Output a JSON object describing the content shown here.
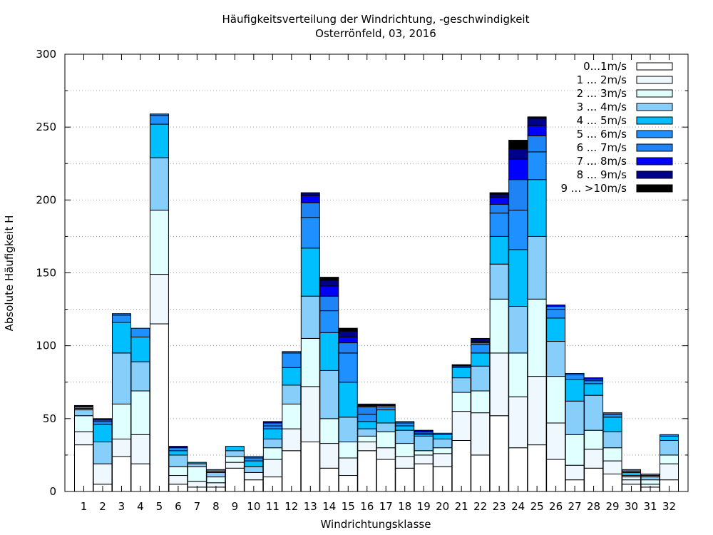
{
  "chart_data": {
    "type": "bar",
    "stacked": true,
    "title": "Häufigkeitsverteilung der Windrichtung, -geschwindigkeit",
    "subtitle": "Osterrönfeld, 03, 2016",
    "xlabel": "Windrichtungsklasse",
    "ylabel": "Absolute Häufigkeit H",
    "ylim": [
      0,
      300
    ],
    "yticks": [
      0,
      50,
      100,
      150,
      200,
      250,
      300
    ],
    "grid": true,
    "legend_position": "top-right",
    "categories": [
      "1",
      "2",
      "3",
      "4",
      "5",
      "6",
      "7",
      "8",
      "9",
      "10",
      "11",
      "12",
      "13",
      "14",
      "15",
      "16",
      "17",
      "18",
      "19",
      "20",
      "21",
      "22",
      "23",
      "24",
      "25",
      "26",
      "27",
      "28",
      "29",
      "30",
      "31",
      "32"
    ],
    "series": [
      {
        "name": "0...1m/s",
        "color": "#ffffff",
        "values": [
          32,
          5,
          24,
          19,
          115,
          5,
          3,
          3,
          16,
          8,
          10,
          28,
          34,
          16,
          11,
          28,
          22,
          16,
          19,
          17,
          35,
          25,
          52,
          30,
          32,
          22,
          8,
          16,
          12,
          5,
          3,
          8
        ]
      },
      {
        "name": "1 ... 2m/s",
        "color": "#f0f8ff",
        "values": [
          9,
          14,
          12,
          20,
          34,
          6,
          4,
          3,
          4,
          5,
          12,
          15,
          38,
          17,
          12,
          6,
          8,
          8,
          6,
          9,
          20,
          29,
          43,
          35,
          47,
          25,
          10,
          13,
          9,
          3,
          2,
          11
        ]
      },
      {
        "name": "2 ... 3m/s",
        "color": "#e0ffff",
        "values": [
          11,
          0,
          24,
          30,
          44,
          6,
          10,
          4,
          4,
          0,
          8,
          17,
          33,
          17,
          11,
          4,
          11,
          9,
          3,
          4,
          13,
          15,
          37,
          30,
          53,
          32,
          21,
          13,
          9,
          2,
          3,
          6
        ]
      },
      {
        "name": "3 ... 4m/s",
        "color": "#87cefa",
        "values": [
          4,
          15,
          35,
          20,
          36,
          8,
          2,
          3,
          4,
          4,
          6,
          13,
          29,
          33,
          17,
          5,
          6,
          9,
          10,
          6,
          10,
          17,
          24,
          32,
          43,
          24,
          23,
          24,
          11,
          1,
          2,
          10
        ]
      },
      {
        "name": "4 ... 5m/s",
        "color": "#00bfff",
        "values": [
          1,
          12,
          21,
          17,
          23,
          3,
          1,
          1,
          3,
          4,
          7,
          12,
          33,
          26,
          24,
          5,
          9,
          3,
          1,
          3,
          7,
          9,
          19,
          39,
          39,
          16,
          15,
          8,
          10,
          2,
          1,
          3
        ]
      },
      {
        "name": "5 ... 6m/s",
        "color": "#1e90ff",
        "values": [
          1,
          2,
          5,
          6,
          6,
          2,
          0,
          1,
          0,
          2,
          2,
          10,
          21,
          15,
          20,
          5,
          2,
          2,
          1,
          1,
          1,
          6,
          16,
          27,
          19,
          6,
          3,
          2,
          2,
          1,
          1,
          1
        ]
      },
      {
        "name": "6 ... 7m/s",
        "color": "#1e84f5",
        "values": [
          0,
          1,
          1,
          0,
          1,
          0,
          0,
          0,
          0,
          1,
          2,
          1,
          10,
          10,
          7,
          5,
          1,
          1,
          1,
          0,
          0,
          1,
          6,
          21,
          11,
          2,
          1,
          1,
          1,
          1,
          0,
          0
        ]
      },
      {
        "name": "7 ... 8m/s",
        "color": "#0000ff",
        "values": [
          0,
          1,
          0,
          0,
          0,
          0,
          0,
          0,
          0,
          0,
          1,
          0,
          5,
          7,
          4,
          1,
          1,
          0,
          1,
          0,
          0,
          1,
          5,
          14,
          7,
          1,
          0,
          1,
          0,
          0,
          0,
          0
        ]
      },
      {
        "name": "8 ... 9m/s",
        "color": "#00008b",
        "values": [
          1,
          0,
          0,
          0,
          0,
          1,
          0,
          0,
          0,
          0,
          0,
          0,
          2,
          4,
          4,
          1,
          0,
          0,
          0,
          0,
          0,
          2,
          2,
          7,
          5,
          0,
          0,
          0,
          0,
          0,
          0,
          0
        ]
      },
      {
        "name": "9 ... >10m/s",
        "color": "#000000",
        "values": [
          0,
          0,
          0,
          0,
          0,
          0,
          0,
          0,
          0,
          0,
          0,
          0,
          0,
          2,
          2,
          0,
          0,
          0,
          0,
          0,
          1,
          0,
          1,
          6,
          1,
          0,
          0,
          0,
          0,
          0,
          0,
          0
        ]
      }
    ]
  }
}
